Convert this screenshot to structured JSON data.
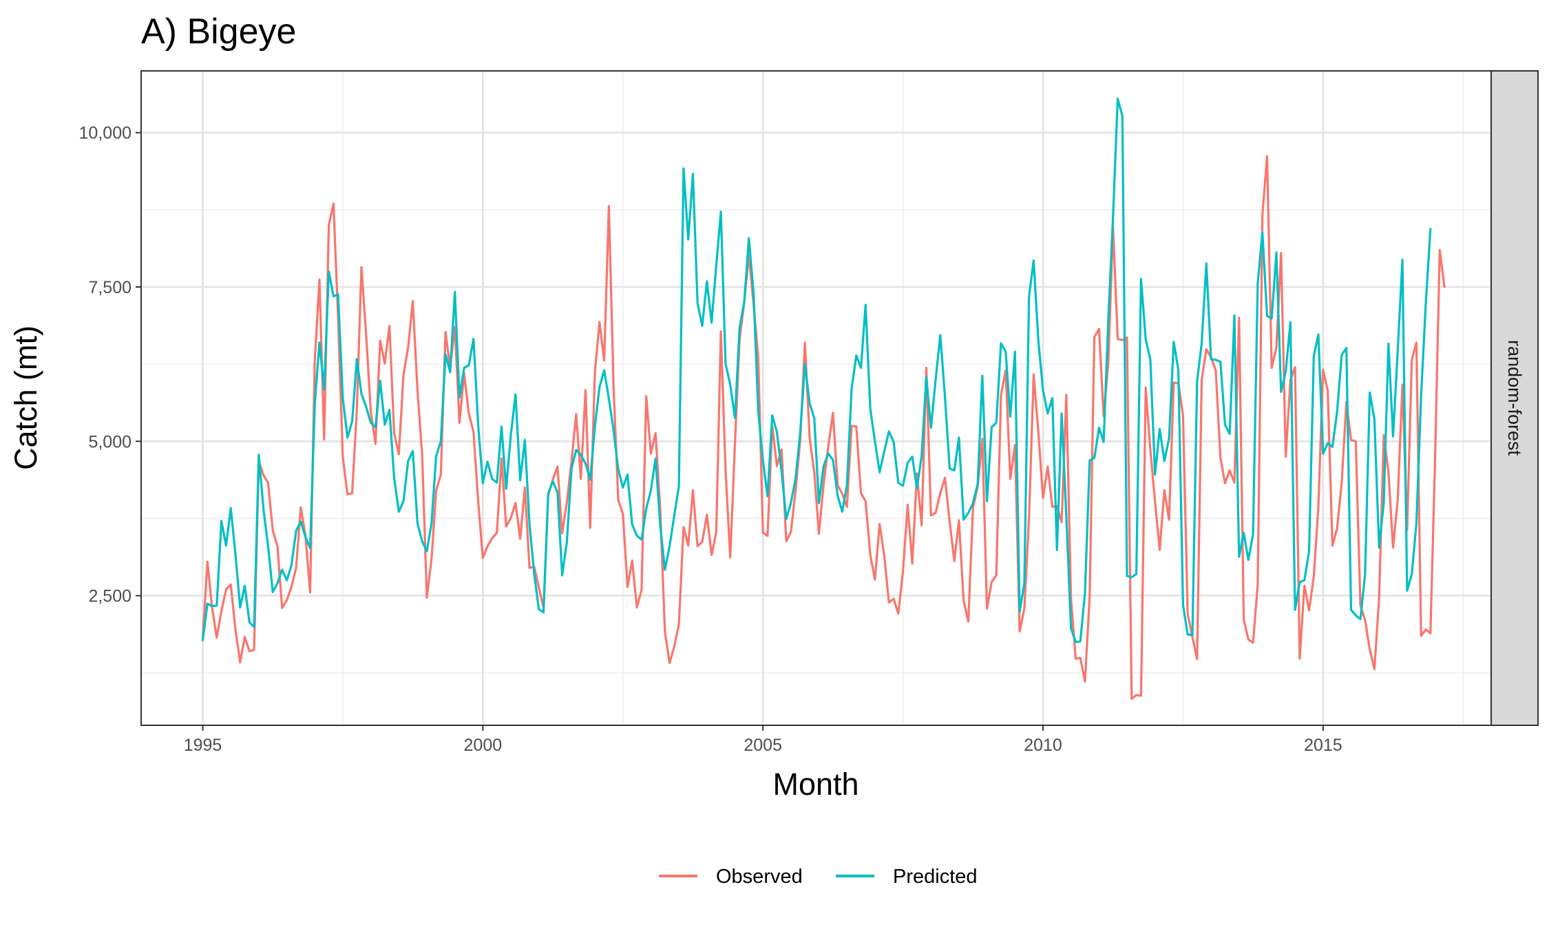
{
  "chart_data": {
    "type": "line",
    "title": "A) Bigeye",
    "xlabel": "Month",
    "ylabel": "Catch (mt)",
    "facet_label": "random-forest",
    "xlim": [
      1993.9,
      2018.0
    ],
    "ylim": [
      400,
      11000
    ],
    "x_ticks": [
      1995,
      2000,
      2005,
      2010,
      2015
    ],
    "x_tick_labels": [
      "1995",
      "2000",
      "2005",
      "2010",
      "2015"
    ],
    "y_ticks": [
      2500,
      5000,
      7500,
      10000
    ],
    "y_tick_labels": [
      "2,500",
      "5,000",
      "7,500",
      "10,000"
    ],
    "grid": true,
    "legend_position": "bottom",
    "x_start": 1995.0,
    "x_step": 0.08333,
    "series": [
      {
        "name": "Observed",
        "color": "#F8766D",
        "values": [
          1800,
          3050,
          2300,
          1820,
          2250,
          2600,
          2680,
          1950,
          1420,
          1830,
          1600,
          1620,
          4680,
          4450,
          4330,
          3560,
          3300,
          2300,
          2430,
          2640,
          2950,
          3930,
          3470,
          2550,
          6300,
          7620,
          5030,
          8500,
          8850,
          7000,
          4750,
          4140,
          4160,
          5500,
          7820,
          6730,
          5480,
          4960,
          6630,
          6260,
          6870,
          5130,
          4790,
          6080,
          6520,
          7270,
          5820,
          4780,
          2470,
          3090,
          4200,
          4460,
          6770,
          6200,
          6850,
          5300,
          6100,
          5450,
          5150,
          4030,
          3110,
          3300,
          3430,
          3520,
          4720,
          3620,
          3760,
          4000,
          3420,
          4250,
          2950,
          2970,
          2630,
          2300,
          4130,
          4380,
          4590,
          3510,
          4010,
          4680,
          5440,
          4390,
          5830,
          3600,
          6120,
          6930,
          6310,
          8810,
          5900,
          4050,
          3830,
          2640,
          3070,
          2310,
          2590,
          5730,
          4800,
          5130,
          3900,
          1920,
          1410,
          1670,
          2030,
          3610,
          3310,
          4210,
          3300,
          3370,
          3810,
          3160,
          3530,
          6780,
          4540,
          3120,
          4950,
          6650,
          7250,
          8020,
          7220,
          6360,
          3520,
          3470,
          5250,
          4600,
          4870,
          3380,
          3530,
          4200,
          5030,
          6600,
          5060,
          4500,
          3500,
          4300,
          4920,
          5460,
          4290,
          4150,
          3940,
          5250,
          5240,
          4160,
          4030,
          3160,
          2760,
          3660,
          3140,
          2390,
          2450,
          2210,
          2890,
          3970,
          3020,
          4480,
          3640,
          6190,
          3800,
          3840,
          4160,
          4410,
          3700,
          3060,
          3720,
          2420,
          2080,
          3920,
          4260,
          5040,
          2290,
          2720,
          2830,
          5750,
          6150,
          4390,
          4940,
          1920,
          2290,
          3760,
          6080,
          5160,
          4080,
          4590,
          3940,
          3950,
          3690,
          5750,
          2440,
          1480,
          1490,
          1110,
          2490,
          6690,
          6820,
          5410,
          6280,
          8470,
          6660,
          6640,
          6680,
          830,
          890,
          880,
          5870,
          4870,
          4030,
          3240,
          4210,
          3730,
          5950,
          5940,
          5420,
          2200,
          1830,
          1470,
          6000,
          6490,
          6360,
          6150,
          4740,
          4320,
          4530,
          4330,
          7000,
          2110,
          1790,
          1740,
          2680,
          8660,
          9620,
          6190,
          6520,
          8050,
          4750,
          5990,
          6200,
          1480,
          2660,
          2260,
          2810,
          3940,
          6160,
          5820,
          3310,
          3590,
          4330,
          5640,
          5020,
          5000,
          2340,
          2100,
          1630,
          1310,
          2450,
          5100,
          4500,
          3280,
          4060,
          5920,
          3560,
          6320,
          6600,
          1850,
          1950,
          1890,
          4760,
          8100,
          7500
        ]
      },
      {
        "name": "Predicted",
        "color": "#00BFC4",
        "values": [
          1780,
          2370,
          2330,
          2340,
          3710,
          3310,
          3920,
          3170,
          2310,
          2660,
          2070,
          1990,
          4780,
          3900,
          3300,
          2560,
          2700,
          2920,
          2750,
          2990,
          3550,
          3700,
          3450,
          3270,
          5600,
          6600,
          5840,
          7750,
          7350,
          7380,
          5700,
          5060,
          5320,
          6330,
          5770,
          5560,
          5300,
          5230,
          5980,
          5270,
          5510,
          4410,
          3860,
          4030,
          4680,
          4840,
          3670,
          3380,
          3220,
          3670,
          4760,
          5000,
          6410,
          6120,
          7420,
          5710,
          6190,
          6230,
          6660,
          5260,
          4320,
          4670,
          4390,
          4330,
          5240,
          4230,
          5100,
          5760,
          4370,
          5020,
          3660,
          2860,
          2280,
          2230,
          4160,
          4350,
          4170,
          2830,
          3370,
          4560,
          4860,
          4780,
          4640,
          4380,
          5240,
          5880,
          6150,
          5690,
          5180,
          4550,
          4250,
          4460,
          3650,
          3470,
          3410,
          3910,
          4200,
          4720,
          3640,
          2920,
          3300,
          3790,
          4270,
          9420,
          8270,
          9330,
          7240,
          6870,
          7590,
          6920,
          7850,
          8720,
          6260,
          5920,
          5380,
          6840,
          7250,
          8290,
          7400,
          5480,
          4690,
          4110,
          5420,
          5150,
          4510,
          3740,
          4000,
          4390,
          5150,
          6250,
          5620,
          5370,
          4000,
          4600,
          4800,
          4700,
          4120,
          3860,
          4290,
          5850,
          6390,
          6190,
          7210,
          5530,
          5000,
          4500,
          4840,
          5160,
          4990,
          4330,
          4280,
          4650,
          4750,
          4240,
          4760,
          6040,
          5220,
          5990,
          6720,
          5720,
          4560,
          4530,
          5060,
          3730,
          3840,
          4000,
          4310,
          6060,
          4030,
          5230,
          5300,
          6590,
          6450,
          5400,
          6450,
          2240,
          2700,
          7340,
          7930,
          6640,
          5830,
          5450,
          5700,
          3240,
          5450,
          3780,
          1970,
          1750,
          1760,
          2550,
          4690,
          4730,
          5220,
          4990,
          6990,
          8620,
          10550,
          10270,
          2820,
          2800,
          2850,
          7630,
          6650,
          6330,
          4460,
          5200,
          4680,
          5050,
          6610,
          6160,
          2350,
          1870,
          1860,
          5970,
          6590,
          7880,
          6330,
          6320,
          6290,
          5270,
          5120,
          7040,
          3130,
          3520,
          3080,
          3490,
          7560,
          8380,
          7030,
          6990,
          8060,
          5800,
          6130,
          6930,
          2270,
          2720,
          2750,
          3220,
          6380,
          6730,
          4800,
          4970,
          4910,
          5480,
          6400,
          6510,
          2270,
          2180,
          2120,
          2860,
          5790,
          5360,
          3280,
          4010,
          6580,
          5080,
          6480,
          7940,
          2580,
          2850,
          3670,
          5730,
          7230,
          8440
        ]
      }
    ]
  }
}
